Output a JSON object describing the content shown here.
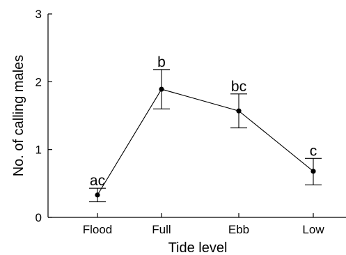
{
  "chart_data": {
    "type": "line",
    "title": "",
    "xlabel": "Tide level",
    "ylabel": "No. of calling males",
    "categories": [
      "Flood",
      "Full",
      "Ebb",
      "Low"
    ],
    "ylim": [
      0,
      3
    ],
    "yticks": [
      0,
      1,
      2,
      3
    ],
    "grid": false,
    "series": [
      {
        "values": [
          0.33,
          1.89,
          1.57,
          0.68
        ],
        "error_low": [
          0.23,
          1.6,
          1.32,
          0.48
        ],
        "error_high": [
          0.43,
          2.18,
          1.82,
          0.87
        ],
        "labels": [
          "ac",
          "b",
          "bc",
          "c"
        ],
        "color": "#000000"
      }
    ]
  }
}
